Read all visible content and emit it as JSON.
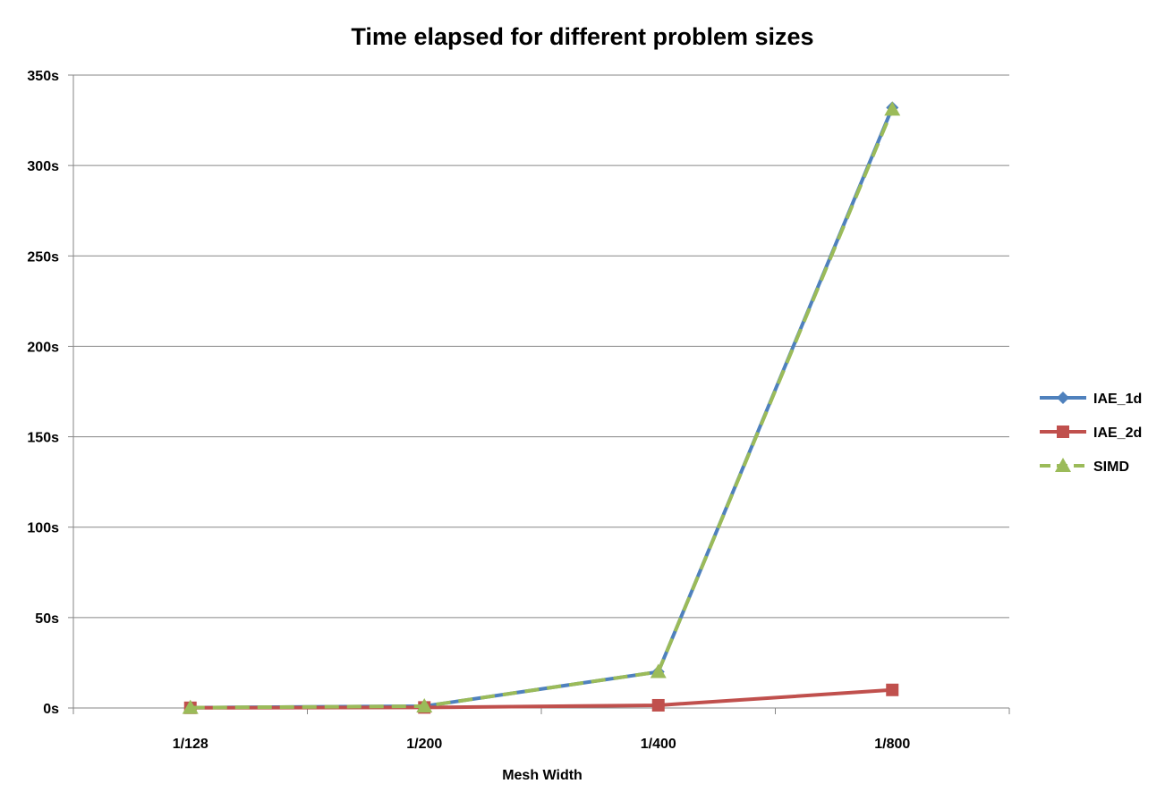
{
  "chart_data": {
    "type": "line",
    "title": "Time elapsed for different problem sizes",
    "xlabel": "Mesh Width",
    "ylabel": "",
    "categories": [
      "1/128",
      "1/200",
      "1/400",
      "1/800"
    ],
    "yticks": [
      "0s",
      "50s",
      "100s",
      "150s",
      "200s",
      "250s",
      "300s",
      "350s"
    ],
    "ylim": [
      0,
      350
    ],
    "grid": true,
    "legend_position": "right",
    "series": [
      {
        "name": "IAE_1d",
        "values": [
          0.2,
          1,
          20,
          332
        ],
        "color": "#4f81bd",
        "marker": "diamond",
        "dash": false
      },
      {
        "name": "IAE_2d",
        "values": [
          0.1,
          0.3,
          1.5,
          10
        ],
        "color": "#c0504d",
        "marker": "square",
        "dash": false
      },
      {
        "name": "SIMD",
        "values": [
          0.2,
          1,
          20,
          331
        ],
        "color": "#9bbb59",
        "marker": "triangle",
        "dash": true
      }
    ]
  }
}
